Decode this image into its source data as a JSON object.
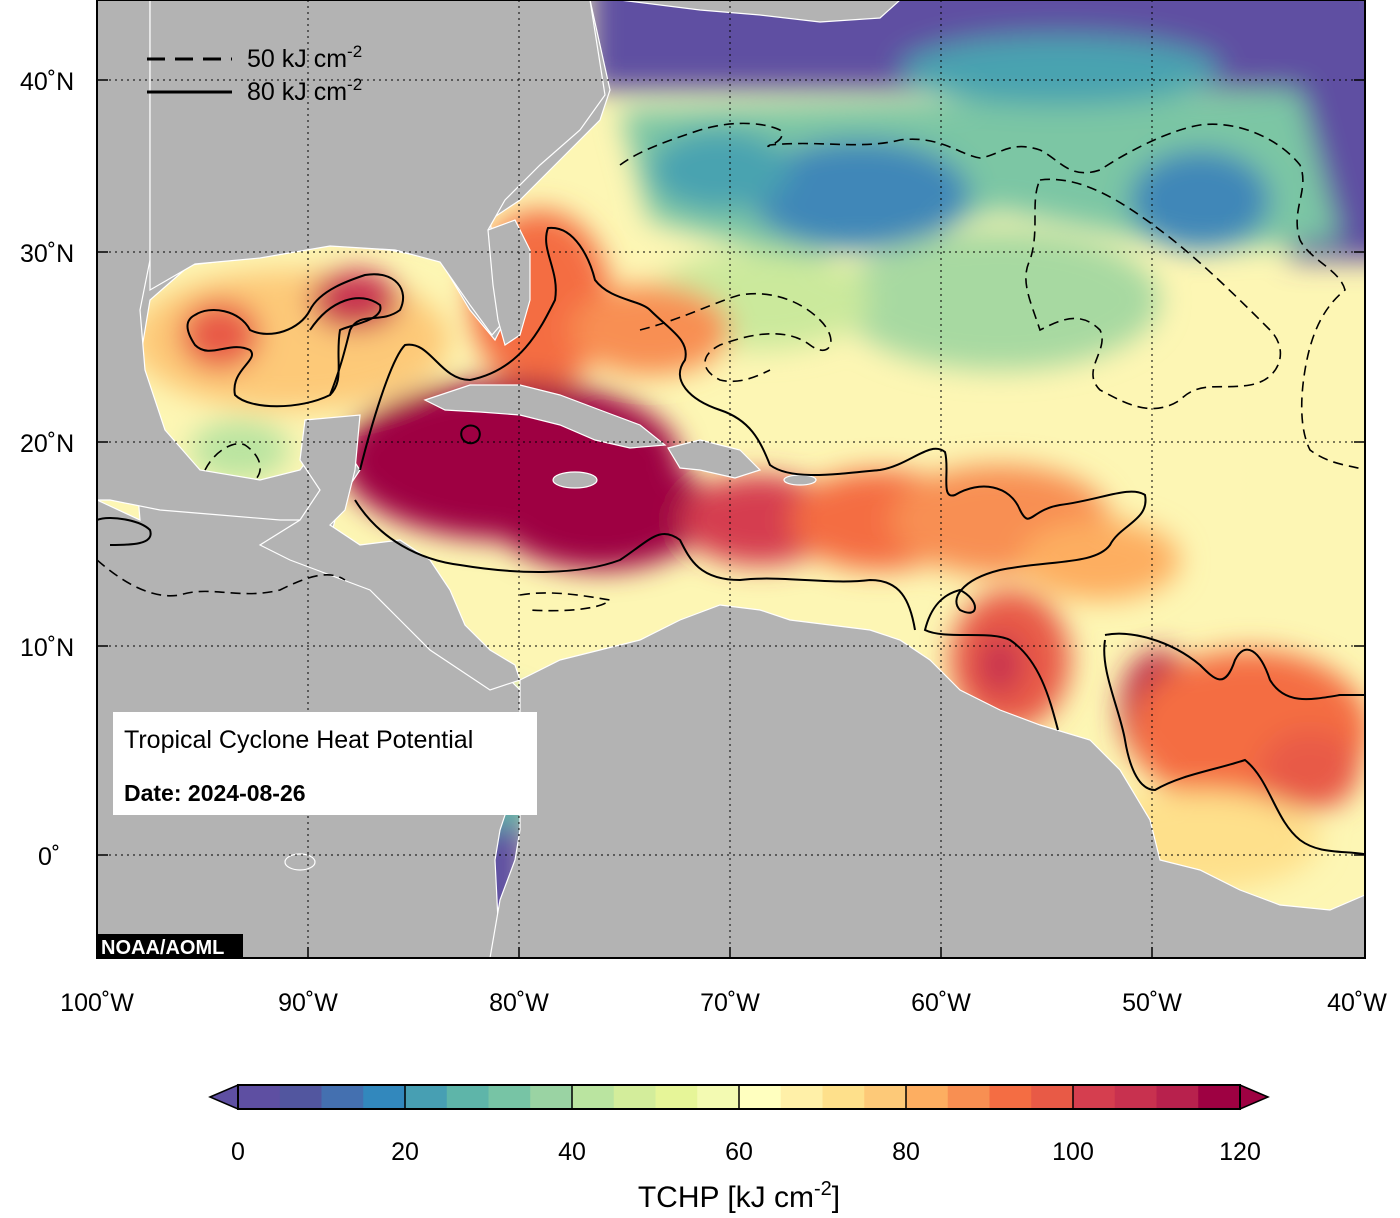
{
  "map": {
    "title": "Tropical Cyclone Heat Potential",
    "date_label": "Date: 2024-08-26",
    "credit": "NOAA/AOML",
    "legend": [
      {
        "style": "dashed",
        "label": "50 kJ cm",
        "sup": "-2"
      },
      {
        "style": "solid",
        "label": "80 kJ cm",
        "sup": "-2"
      }
    ],
    "lat_ticks": [
      "40˚N",
      "30˚N",
      "20˚N",
      "10˚N",
      "0˚"
    ],
    "lon_ticks": [
      "100˚W",
      "90˚W",
      "80˚W",
      "70˚W",
      "60˚W",
      "50˚W",
      "40˚W"
    ],
    "colors": {
      "land": "#b3b3b3",
      "coast": "#ffffff",
      "frame": "#000000",
      "gridline": "#000000"
    }
  },
  "colorbar": {
    "label": "TCHP [kJ cm",
    "label_sup": "-2",
    "label_end": "]",
    "ticks": [
      "0",
      "20",
      "40",
      "60",
      "80",
      "100",
      "120"
    ],
    "range": [
      0,
      120
    ],
    "step": 5,
    "colors": [
      "#5e4fa2",
      "#52569f",
      "#4470b0",
      "#3288bd",
      "#479fb3",
      "#5eb5a9",
      "#77c4a5",
      "#9ad3a3",
      "#bae4a0",
      "#d3ed9b",
      "#e6f598",
      "#f3fab2",
      "#ffffbf",
      "#fff0a8",
      "#fee08b",
      "#fdc978",
      "#fdae61",
      "#f88f52",
      "#f46d43",
      "#e85a46",
      "#d53e4f",
      "#c8314f",
      "#b8214d",
      "#9e0142"
    ]
  }
}
